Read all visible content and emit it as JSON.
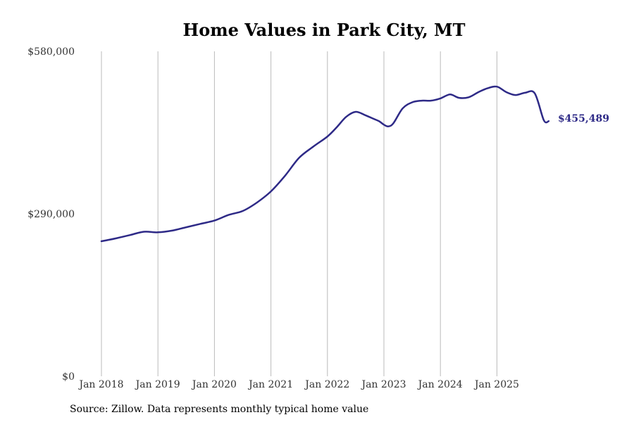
{
  "chart_data": {
    "type": "line",
    "title": "Home Values in Park City, MT",
    "xlabel": "",
    "ylabel": "",
    "ylim": [
      0,
      580000
    ],
    "y_ticks": [
      {
        "value": 0,
        "label": "$0"
      },
      {
        "value": 290000,
        "label": "$290,000"
      },
      {
        "value": 580000,
        "label": "$580,000"
      }
    ],
    "x_range": [
      2018.0,
      2025.917
    ],
    "x_ticks": [
      {
        "value": 2018,
        "label": "Jan 2018"
      },
      {
        "value": 2019,
        "label": "Jan 2019"
      },
      {
        "value": 2020,
        "label": "Jan 2020"
      },
      {
        "value": 2021,
        "label": "Jan 2021"
      },
      {
        "value": 2022,
        "label": "Jan 2022"
      },
      {
        "value": 2023,
        "label": "Jan 2023"
      },
      {
        "value": 2024,
        "label": "Jan 2024"
      },
      {
        "value": 2025,
        "label": "Jan 2025"
      }
    ],
    "grid": "vertical",
    "color": "#2e2a87",
    "end_label": "$455,489",
    "series": [
      {
        "name": "Typical home value",
        "x": [
          2018.0,
          2018.25,
          2018.5,
          2018.75,
          2019.0,
          2019.25,
          2019.5,
          2019.75,
          2020.0,
          2020.25,
          2020.5,
          2020.75,
          2021.0,
          2021.25,
          2021.5,
          2021.75,
          2022.0,
          2022.17,
          2022.33,
          2022.5,
          2022.67,
          2022.83,
          2022.92,
          2023.0,
          2023.08,
          2023.17,
          2023.33,
          2023.5,
          2023.67,
          2023.83,
          2024.0,
          2024.17,
          2024.33,
          2024.5,
          2024.67,
          2024.83,
          2025.0,
          2025.17,
          2025.33,
          2025.5,
          2025.67,
          2025.83,
          2025.917
        ],
        "y": [
          241000,
          246000,
          252000,
          258000,
          257000,
          260000,
          266000,
          272000,
          278000,
          288000,
          295000,
          310000,
          330000,
          358000,
          390000,
          410000,
          428000,
          445000,
          463000,
          472000,
          466000,
          459000,
          455000,
          449000,
          446000,
          452000,
          478000,
          489000,
          492000,
          492000,
          496000,
          503000,
          497000,
          498000,
          507000,
          514000,
          517000,
          507000,
          502000,
          506000,
          505000,
          457000,
          455489
        ]
      }
    ]
  },
  "footer": {
    "source": "Source: Zillow. Data represents monthly typical home value"
  }
}
